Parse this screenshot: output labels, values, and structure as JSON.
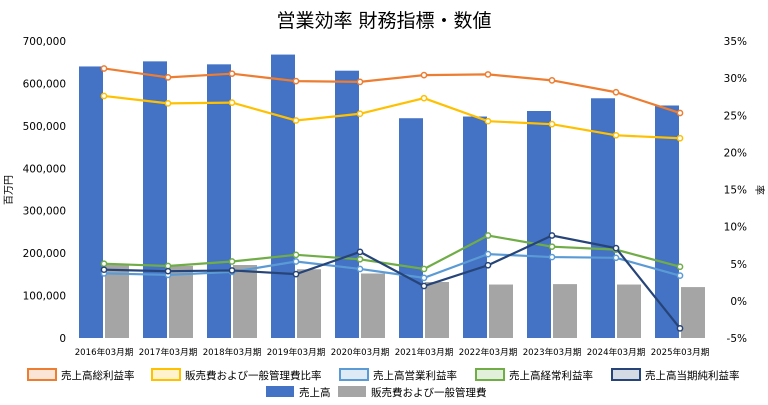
{
  "chart_data": {
    "type": "bar",
    "title": "営業効率 財務指標・数値",
    "ylabel_left": "百万円",
    "ylabel_right": "率",
    "categories": [
      "2016年03月期",
      "2017年03月期",
      "2018年03月期",
      "2019年03月期",
      "2020年03月期",
      "2021年03月期",
      "2022年03月期",
      "2023年03月期",
      "2024年03月期",
      "2025年03月期"
    ],
    "left_axis": {
      "min": 0,
      "max": 700000,
      "ticks": [
        "0",
        "100,000",
        "200,000",
        "300,000",
        "400,000",
        "500,000",
        "600,000",
        "700,000"
      ],
      "tick_values": [
        0,
        100000,
        200000,
        300000,
        400000,
        500000,
        600000,
        700000
      ]
    },
    "right_axis": {
      "min": -5,
      "max": 35,
      "ticks": [
        "-5%",
        "0%",
        "5%",
        "10%",
        "15%",
        "20%",
        "25%",
        "30%",
        "35%"
      ],
      "tick_values": [
        -5,
        0,
        5,
        10,
        15,
        20,
        25,
        30,
        35
      ]
    },
    "bar_series": [
      {
        "name": "売上高",
        "color": "#4472c4",
        "values": [
          640000,
          652000,
          645000,
          668000,
          630000,
          518000,
          522000,
          535000,
          565000,
          548000
        ]
      },
      {
        "name": "販売費および一般管理費",
        "color": "#a5a5a5",
        "values": [
          175000,
          170000,
          172000,
          162000,
          152000,
          132000,
          126000,
          127000,
          126000,
          120000
        ]
      }
    ],
    "line_series": [
      {
        "name": "売上高総利益率",
        "color": "#ed7d31",
        "values": [
          31.3,
          30.1,
          30.6,
          29.6,
          29.5,
          30.4,
          30.5,
          29.7,
          28.1,
          25.3
        ]
      },
      {
        "name": "販売費および一般管理費比率",
        "color": "#ffc000",
        "values": [
          27.6,
          26.6,
          26.7,
          24.3,
          25.2,
          27.3,
          24.2,
          23.8,
          22.3,
          21.9
        ]
      },
      {
        "name": "売上高営業利益率",
        "color": "#5b9bd5",
        "values": [
          3.7,
          3.5,
          3.9,
          5.3,
          4.3,
          3.1,
          6.3,
          5.9,
          5.8,
          3.4
        ]
      },
      {
        "name": "売上高経常利益率",
        "color": "#70ad47",
        "values": [
          5.0,
          4.7,
          5.3,
          6.2,
          5.6,
          4.3,
          8.8,
          7.3,
          6.9,
          4.6
        ]
      },
      {
        "name": "売上高当期純利益率",
        "color": "#264478",
        "values": [
          4.2,
          4.0,
          4.1,
          3.6,
          6.6,
          2.0,
          4.8,
          8.8,
          7.1,
          -3.7
        ]
      }
    ],
    "legend_position": "bottom",
    "grid": false
  }
}
